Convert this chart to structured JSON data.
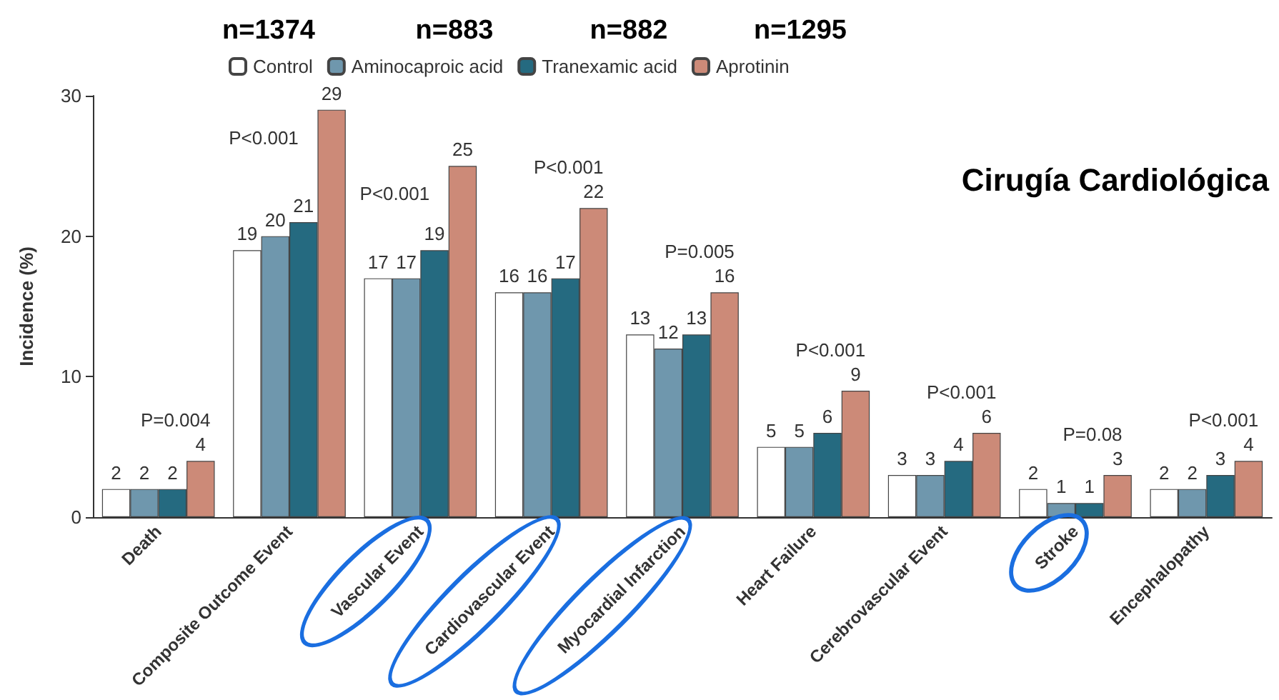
{
  "chart_data": {
    "type": "bar",
    "title": "Cirugía Cardiológica",
    "ylabel": "Incidence (%)",
    "categories": [
      "Death",
      "Composite Outcome Event",
      "Vascular Event",
      "Cardiovascular Event",
      "Myocardial Infarction",
      "Heart Failure",
      "Cerebrovascular Event",
      "Stroke",
      "Encephalopathy"
    ],
    "series": [
      {
        "name": "Control",
        "color": "#ffffff",
        "values": [
          2,
          19,
          17,
          16,
          13,
          5,
          3,
          2,
          2
        ]
      },
      {
        "name": "Aminocaproic acid",
        "color": "#6f97ad",
        "values": [
          2,
          20,
          17,
          16,
          12,
          5,
          3,
          1,
          2
        ]
      },
      {
        "name": "Tranexamic acid",
        "color": "#256a80",
        "values": [
          2,
          21,
          19,
          17,
          13,
          6,
          4,
          1,
          3
        ]
      },
      {
        "name": "Aprotinin",
        "color": "#cc8a78",
        "values": [
          4,
          29,
          25,
          22,
          16,
          9,
          6,
          3,
          4
        ]
      }
    ],
    "ylim": [
      0,
      30
    ],
    "yticks": [
      0,
      10,
      20,
      30
    ],
    "grid": false,
    "legend": "top",
    "data_labels": true,
    "annotations": [
      "n=1374",
      "n=883",
      "n=882",
      "n=1295",
      "P=0.004",
      "P<0.001",
      "P<0.001",
      "P<0.001",
      "P=0.005",
      "P<0.001",
      "P<0.001",
      "P=0.08",
      "P<0.001"
    ]
  }
}
